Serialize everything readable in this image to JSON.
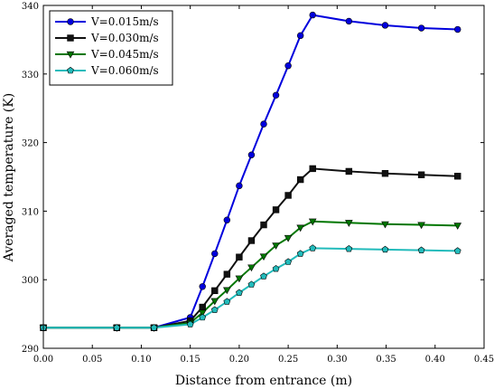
{
  "chart_data": {
    "type": "line",
    "xlabel": "Distance from entrance (m)",
    "ylabel": "Averaged temperature (K)",
    "xlim": [
      0.0,
      0.45
    ],
    "ylim": [
      290,
      340
    ],
    "xticks": [
      0.0,
      0.05,
      0.1,
      0.15,
      0.2,
      0.25,
      0.3,
      0.35,
      0.4,
      0.45
    ],
    "xtick_labels": [
      "0.00",
      "0.05",
      "0.10",
      "0.15",
      "0.20",
      "0.25",
      "0.30",
      "0.35",
      "0.40",
      "0.45"
    ],
    "yticks": [
      290,
      300,
      310,
      320,
      330,
      340
    ],
    "ytick_labels": [
      "290",
      "300",
      "310",
      "320",
      "330",
      "340"
    ],
    "grid": false,
    "legend_position": "top-left",
    "series": [
      {
        "name": "V=0.015m/s",
        "color": "#0000dd",
        "marker": "circle",
        "x": [
          0.0,
          0.075,
          0.113,
          0.15,
          0.1625,
          0.175,
          0.1875,
          0.2,
          0.2125,
          0.225,
          0.2375,
          0.25,
          0.2625,
          0.275,
          0.312,
          0.349,
          0.386,
          0.423
        ],
        "y": [
          293,
          293,
          293,
          294.5,
          299,
          303.8,
          308.7,
          313.7,
          318.2,
          322.7,
          326.9,
          331.2,
          335.6,
          338.6,
          337.7,
          337.1,
          336.7,
          336.5
        ]
      },
      {
        "name": "V=0.030m/s",
        "color": "#111111",
        "marker": "square",
        "x": [
          0.0,
          0.075,
          0.113,
          0.15,
          0.1625,
          0.175,
          0.1875,
          0.2,
          0.2125,
          0.225,
          0.2375,
          0.25,
          0.2625,
          0.275,
          0.312,
          0.349,
          0.386,
          0.423
        ],
        "y": [
          293,
          293,
          293,
          294,
          296,
          298.4,
          300.8,
          303.3,
          305.7,
          308.0,
          310.2,
          312.3,
          314.6,
          316.2,
          315.8,
          315.5,
          315.3,
          315.1
        ]
      },
      {
        "name": "V=0.045m/s",
        "color": "#007700",
        "marker": "triangle-down",
        "x": [
          0.0,
          0.075,
          0.113,
          0.15,
          0.1625,
          0.175,
          0.1875,
          0.2,
          0.2125,
          0.225,
          0.2375,
          0.25,
          0.2625,
          0.275,
          0.312,
          0.349,
          0.386,
          0.423
        ],
        "y": [
          293,
          293,
          293,
          293.7,
          295.2,
          296.9,
          298.5,
          300.2,
          301.8,
          303.4,
          305.0,
          306.1,
          307.6,
          308.5,
          308.3,
          308.1,
          308.0,
          307.9
        ]
      },
      {
        "name": "V=0.060m/s",
        "color": "#22bbbb",
        "marker": "pentagon",
        "x": [
          0.0,
          0.075,
          0.113,
          0.15,
          0.1625,
          0.175,
          0.1875,
          0.2,
          0.2125,
          0.225,
          0.2375,
          0.25,
          0.2625,
          0.275,
          0.312,
          0.349,
          0.386,
          0.423
        ],
        "y": [
          293,
          293,
          293,
          293.5,
          294.5,
          295.6,
          296.8,
          298.1,
          299.3,
          300.5,
          301.6,
          302.6,
          303.8,
          304.6,
          304.5,
          304.4,
          304.3,
          304.2
        ]
      }
    ]
  }
}
